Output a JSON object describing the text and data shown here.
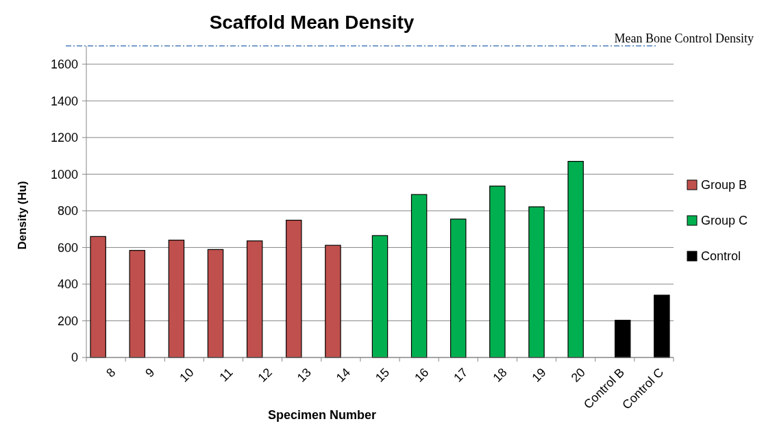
{
  "chart_data": {
    "type": "bar",
    "title": "Scaffold Mean Density",
    "xlabel": "Specimen Number",
    "ylabel": "Density (Hu)",
    "categories": [
      "8",
      "9",
      "10",
      "11",
      "12",
      "13",
      "14",
      "15",
      "16",
      "17",
      "18",
      "19",
      "20",
      "Control B",
      "Control C"
    ],
    "series": [
      {
        "name": "Group B",
        "color": "#c0504d",
        "values": [
          660,
          584,
          640,
          589,
          636,
          749,
          612,
          null,
          null,
          null,
          null,
          null,
          null,
          null,
          null
        ]
      },
      {
        "name": "Group C",
        "color": "#00b050",
        "values": [
          null,
          null,
          null,
          null,
          null,
          null,
          null,
          665,
          889,
          755,
          935,
          822,
          1070,
          null,
          null
        ]
      },
      {
        "name": "Control",
        "color": "#000000",
        "values": [
          null,
          null,
          null,
          null,
          null,
          null,
          null,
          null,
          null,
          null,
          null,
          null,
          null,
          203,
          340
        ]
      }
    ],
    "ylim": [
      0,
      1700
    ],
    "yticks": [
      0,
      200,
      400,
      600,
      800,
      1000,
      1200,
      1400,
      1600
    ],
    "grid": "y",
    "legend": "right",
    "ref_lines": [
      {
        "axis": "y",
        "value": 1700,
        "label": "Mean Bone Control Density",
        "color": "#4a7ebb",
        "line_style": "dashdot"
      }
    ]
  }
}
